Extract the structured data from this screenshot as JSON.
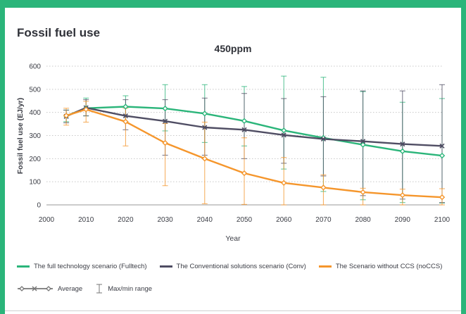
{
  "chart_data": {
    "type": "line",
    "title": "Fossil fuel use",
    "subtitle": "450ppm",
    "xlabel": "Year",
    "ylabel": "Fossil fuel use (EJ/yr)",
    "xlim": [
      2000,
      2100
    ],
    "ylim": [
      0,
      600
    ],
    "xticks": [
      "2000",
      "2010",
      "2020",
      "2030",
      "2040",
      "2050",
      "2060",
      "2070",
      "2080",
      "2090",
      "2100"
    ],
    "yticks": [
      "0",
      "100",
      "200",
      "300",
      "400",
      "500",
      "600"
    ],
    "grid": "horizontal dotted",
    "series": [
      {
        "name": "The full technology scenario (Fulltech)",
        "color": "#2bb57a",
        "x": [
          2005,
          2010,
          2020,
          2030,
          2040,
          2050,
          2060,
          2070,
          2080,
          2090,
          2100
        ],
        "values": [
          385,
          418,
          425,
          417,
          395,
          363,
          322,
          290,
          260,
          232,
          213
        ],
        "max": [
          410,
          462,
          472,
          520,
          520,
          512,
          557,
          552,
          490,
          444,
          460
        ],
        "min": [
          360,
          385,
          360,
          320,
          270,
          255,
          155,
          58,
          22,
          10,
          8
        ]
      },
      {
        "name": "The Conventional solutions scenario (Conv)",
        "color": "#4f4d63",
        "x": [
          2005,
          2010,
          2020,
          2030,
          2040,
          2050,
          2060,
          2070,
          2080,
          2090,
          2100
        ],
        "values": [
          383,
          420,
          385,
          362,
          335,
          325,
          302,
          285,
          275,
          263,
          255
        ],
        "max": [
          410,
          455,
          455,
          455,
          462,
          482,
          460,
          468,
          493,
          493,
          520
        ],
        "min": [
          355,
          385,
          325,
          215,
          215,
          200,
          180,
          125,
          40,
          25,
          10
        ]
      },
      {
        "name": "The Scenario without CCS (noCCS)",
        "color": "#f5962c",
        "x": [
          2005,
          2010,
          2020,
          2030,
          2040,
          2050,
          2060,
          2070,
          2080,
          2090,
          2100
        ],
        "values": [
          386,
          413,
          360,
          268,
          200,
          137,
          95,
          75,
          55,
          42,
          33
        ],
        "max": [
          418,
          448,
          418,
          352,
          358,
          290,
          205,
          130,
          72,
          68,
          70
        ],
        "min": [
          345,
          358,
          255,
          83,
          5,
          2,
          0,
          0,
          0,
          0,
          0
        ]
      }
    ],
    "legend": {
      "placement": "bottom",
      "average_label": "Average",
      "range_label": "Max/min range"
    }
  }
}
